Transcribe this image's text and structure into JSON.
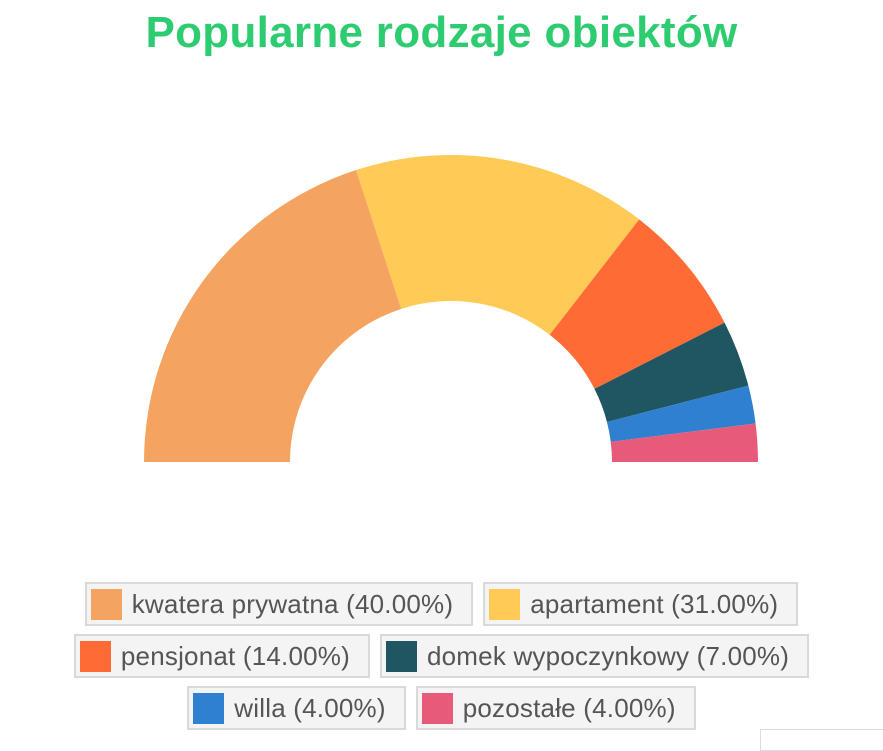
{
  "chart_data": {
    "type": "pie",
    "variant": "semi-donut",
    "title": "Popularne rodzaje obiektów",
    "title_color": "#2ecc71",
    "slices": [
      {
        "label": "kwatera prywatna",
        "value": 40.0,
        "display": "kwatera prywatna (40.00%)",
        "color": "#f4a460"
      },
      {
        "label": "apartament",
        "value": 31.0,
        "display": "apartament (31.00%)",
        "color": "#ffca55"
      },
      {
        "label": "pensjonat",
        "value": 14.0,
        "display": "pensjonat (14.00%)",
        "color": "#ff6b35"
      },
      {
        "label": "domek wypoczynkowy",
        "value": 7.0,
        "display": "domek wypoczynkowy (7.00%)",
        "color": "#1f5661"
      },
      {
        "label": "willa",
        "value": 4.0,
        "display": "willa (4.00%)",
        "color": "#2f80d0"
      },
      {
        "label": "pozostałe",
        "value": 4.0,
        "display": "pozostałe (4.00%)",
        "color": "#e85a7a"
      }
    ],
    "legend_position": "bottom"
  }
}
